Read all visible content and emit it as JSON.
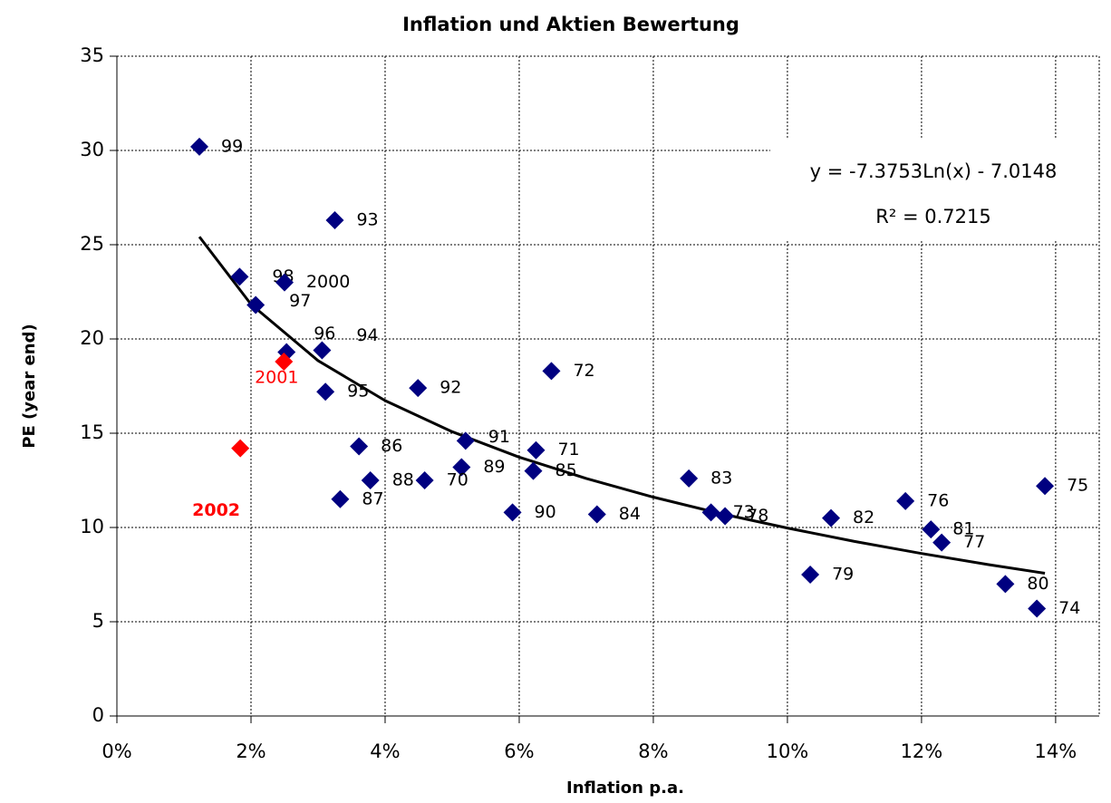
{
  "chart_data": {
    "type": "scatter",
    "title": "Inflation und Aktien Bewertung",
    "x_label": "Inflation p.a.",
    "y_label": "PE (year end)",
    "xlim": [
      0,
      14.65
    ],
    "ylim": [
      0,
      35
    ],
    "xticks": [
      {
        "value": 0,
        "label": "0%"
      },
      {
        "value": 2,
        "label": "2%"
      },
      {
        "value": 4,
        "label": "4%"
      },
      {
        "value": 6,
        "label": "6%"
      },
      {
        "value": 8,
        "label": "8%"
      },
      {
        "value": 10,
        "label": "10%"
      },
      {
        "value": 12,
        "label": "12%"
      },
      {
        "value": 14,
        "label": "14%"
      }
    ],
    "yticks": [
      0,
      5,
      10,
      15,
      20,
      25,
      30,
      35
    ],
    "grid": true,
    "series": [
      {
        "color": "#000080",
        "labels": [
          "99",
          "98",
          "2000",
          "97",
          "96",
          "94",
          "95",
          "93",
          "92",
          "72",
          "91",
          "71",
          "86",
          "89",
          "85",
          "88",
          "70",
          "87",
          "90",
          "84",
          "83",
          "73",
          "78",
          "82",
          "76",
          "75",
          "81",
          "77",
          "79",
          "80",
          "74"
        ],
        "x": [
          1.23,
          1.83,
          2.5,
          2.07,
          2.53,
          3.06,
          3.11,
          3.25,
          4.49,
          6.48,
          5.2,
          6.25,
          3.61,
          5.14,
          6.21,
          3.78,
          4.59,
          3.33,
          5.9,
          7.16,
          8.53,
          8.86,
          9.07,
          10.65,
          11.76,
          13.84,
          12.14,
          12.3,
          10.34,
          13.25,
          13.72
        ],
        "values": [
          30.2,
          23.3,
          23.0,
          21.8,
          19.3,
          19.4,
          17.2,
          26.3,
          17.4,
          18.3,
          14.6,
          14.1,
          14.3,
          13.2,
          13.0,
          12.5,
          12.5,
          11.5,
          10.8,
          10.7,
          12.6,
          10.8,
          10.6,
          10.5,
          11.4,
          12.2,
          9.9,
          9.2,
          7.5,
          7.0,
          5.7
        ]
      },
      {
        "color": "#ff0000",
        "labels": [
          "2001",
          "2002"
        ],
        "x": [
          2.49,
          1.84
        ],
        "values": [
          18.8,
          14.2
        ]
      }
    ],
    "trendline": {
      "color": "#000000",
      "equation": "y = -7.3753Ln(x) - 7.0148",
      "r_squared": "R² = 0.7215",
      "x": [
        1.23,
        2,
        3,
        4,
        5,
        6,
        7,
        8,
        9,
        10,
        11,
        12,
        13,
        13.84
      ],
      "values": [
        25.42,
        21.84,
        18.85,
        16.73,
        15.08,
        13.73,
        12.6,
        11.61,
        10.74,
        9.97,
        9.26,
        8.62,
        8.03,
        7.57
      ]
    }
  }
}
